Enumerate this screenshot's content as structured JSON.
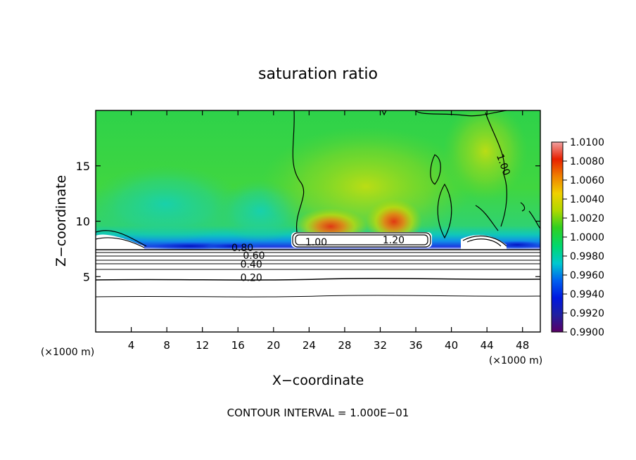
{
  "chart_data": {
    "type": "heatmap",
    "title": "saturation ratio",
    "xlabel": "X−coordinate",
    "ylabel": "Z−coordinate",
    "x_unit_left": "(×1000 m)",
    "x_unit_right": "(×1000 m)",
    "xlim": [
      0,
      50
    ],
    "ylim": [
      0,
      20
    ],
    "x_ticks": [
      4,
      8,
      12,
      16,
      20,
      24,
      28,
      32,
      36,
      40,
      44,
      48
    ],
    "y_ticks": [
      5,
      10,
      15
    ],
    "contour_interval_label": "CONTOUR INTERVAL = 1.000E−01",
    "contour_labels": [
      {
        "text": "0.80",
        "x": 16.5,
        "z": 7.3
      },
      {
        "text": "0.60",
        "x": 17.8,
        "z": 6.6
      },
      {
        "text": "0.40",
        "x": 17.5,
        "z": 5.8
      },
      {
        "text": "0.20",
        "x": 17.5,
        "z": 4.6
      },
      {
        "text": "1.00",
        "x": 24.8,
        "z": 7.8
      },
      {
        "text": "1.20",
        "x": 33.5,
        "z": 8.0
      },
      {
        "text": "1.00",
        "x": 45.5,
        "z": 15.0
      }
    ],
    "colorbar": {
      "labels": [
        "1.0100",
        "1.0080",
        "1.0060",
        "1.0040",
        "1.0020",
        "1.0000",
        "0.9980",
        "0.9960",
        "0.9940",
        "0.9920",
        "0.9900"
      ],
      "min": 0.99,
      "max": 1.01,
      "colors": [
        "#5a0066",
        "#2020a0",
        "#0018e0",
        "#0060f0",
        "#00c8d0",
        "#00d870",
        "#30d020",
        "#b0d800",
        "#f0d000",
        "#f08000",
        "#e82000",
        "#f0a0a0"
      ]
    },
    "isotherms_below_z": [
      3.3,
      4.8,
      5.5,
      5.9,
      6.3,
      6.7,
      7.1
    ],
    "field_notes": "saturation near 1.0 (green) above ~7.5 km, higher values (yellow-red) around x 22-36 km near z 9-12 km, low values (blue) just above the cloud layer near z ~7.5 km"
  }
}
